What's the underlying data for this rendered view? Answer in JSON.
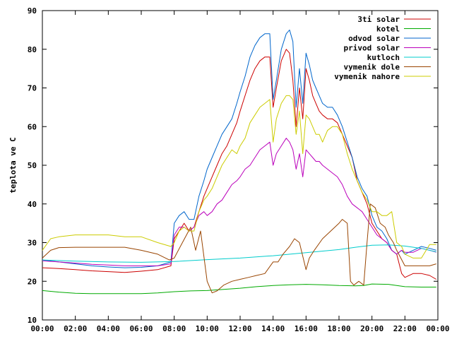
{
  "chart_data": {
    "type": "line",
    "title": "",
    "xlabel": "",
    "ylabel": "teplota ve C",
    "xlim": [
      0,
      24
    ],
    "ylim": [
      10,
      90
    ],
    "grid": false,
    "legend_position": "top-right",
    "x_ticks": [
      "00:00",
      "02:00",
      "04:00",
      "06:00",
      "08:00",
      "10:00",
      "12:00",
      "14:00",
      "16:00",
      "18:00",
      "20:00",
      "22:00",
      "00:00"
    ],
    "y_ticks": [
      "10",
      "20",
      "30",
      "40",
      "50",
      "60",
      "70",
      "80",
      "90"
    ],
    "series": [
      {
        "name": "3ti solar",
        "color": "#cc0000",
        "x": [
          0,
          1,
          2,
          3,
          4,
          5,
          6,
          7,
          7.8,
          8,
          8.3,
          8.6,
          8.9,
          9.2,
          9.5,
          9.8,
          10,
          10.3,
          10.6,
          10.9,
          11.2,
          11.5,
          11.8,
          12,
          12.3,
          12.6,
          12.9,
          13.2,
          13.5,
          13.8,
          14,
          14.2,
          14.5,
          14.8,
          15,
          15.2,
          15.4,
          15.6,
          15.8,
          16,
          16.2,
          16.4,
          16.6,
          16.8,
          17,
          17.3,
          17.6,
          17.9,
          18.2,
          18.5,
          18.8,
          19.1,
          19.4,
          19.7,
          20,
          20.3,
          20.6,
          20.9,
          21.2,
          21.5,
          21.8,
          22,
          22.5,
          23,
          23.5,
          23.9
        ],
        "y": [
          23.5,
          23.3,
          23.0,
          22.7,
          22.5,
          22.3,
          22.6,
          23.0,
          24.0,
          31,
          33,
          35,
          33,
          34,
          38,
          42,
          44,
          47,
          50,
          53,
          55,
          58,
          61,
          64,
          68,
          72,
          75,
          77,
          78,
          78,
          65,
          70,
          77,
          80,
          79,
          72,
          60,
          70,
          62,
          75,
          72,
          68,
          66,
          64,
          63,
          62,
          62,
          61,
          58,
          55,
          52,
          46,
          43,
          40,
          35,
          33,
          31,
          30,
          28,
          27,
          22,
          21,
          22,
          22,
          21.5,
          20.5
        ]
      },
      {
        "name": "kotel",
        "color": "#00aa00",
        "x": [
          0,
          1,
          2,
          3,
          4,
          5,
          6,
          7,
          8,
          9,
          10,
          11,
          12,
          13,
          14,
          15,
          16,
          17,
          18,
          19,
          19.5,
          20,
          21,
          22,
          23,
          23.9
        ],
        "y": [
          17.6,
          17.2,
          16.9,
          16.8,
          16.8,
          16.8,
          16.8,
          17.0,
          17.3,
          17.5,
          17.6,
          17.9,
          18.2,
          18.6,
          18.9,
          19.1,
          19.2,
          19.1,
          18.9,
          18.8,
          18.9,
          19.3,
          19.2,
          18.6,
          18.5,
          18.5
        ]
      },
      {
        "name": "odvod solar",
        "color": "#0066cc",
        "x": [
          0,
          1,
          2,
          3,
          4,
          5,
          6,
          7,
          7.8,
          8,
          8.3,
          8.6,
          8.9,
          9.2,
          9.5,
          9.8,
          10,
          10.3,
          10.6,
          10.9,
          11.2,
          11.5,
          11.8,
          12,
          12.3,
          12.6,
          12.9,
          13.2,
          13.5,
          13.8,
          14,
          14.2,
          14.5,
          14.8,
          15,
          15.2,
          15.4,
          15.6,
          15.8,
          16,
          16.2,
          16.4,
          16.6,
          16.8,
          17,
          17.3,
          17.6,
          17.9,
          18.2,
          18.5,
          18.8,
          19.1,
          19.4,
          19.7,
          20,
          20.3,
          20.6,
          20.9,
          21.2,
          21.5,
          21.8,
          22,
          22.5,
          23,
          23.5,
          23.9
        ],
        "y": [
          25.5,
          25.0,
          24.5,
          24.0,
          23.7,
          23.5,
          23.6,
          24.0,
          25.0,
          35,
          37,
          38,
          36,
          36,
          42,
          46,
          49,
          52,
          55,
          58,
          60,
          62,
          66,
          69,
          73,
          78,
          81,
          83,
          84,
          84,
          67,
          72,
          80,
          84,
          85,
          82,
          65,
          75,
          66,
          79,
          76,
          72,
          70,
          68,
          66,
          65,
          65,
          63,
          60,
          56,
          52,
          47,
          44,
          42,
          37,
          34,
          33,
          31,
          28,
          27,
          28,
          27,
          28,
          29,
          28.5,
          28
        ]
      },
      {
        "name": "privod solar",
        "color": "#bb00bb",
        "x": [
          0,
          1,
          2,
          3,
          4,
          5,
          6,
          7,
          7.8,
          8,
          8.3,
          8.6,
          8.9,
          9.2,
          9.5,
          9.8,
          10,
          10.3,
          10.6,
          10.9,
          11.2,
          11.5,
          11.8,
          12,
          12.3,
          12.6,
          12.9,
          13.2,
          13.5,
          13.8,
          14,
          14.2,
          14.5,
          14.8,
          15,
          15.2,
          15.4,
          15.6,
          15.8,
          16,
          16.2,
          16.4,
          16.6,
          16.8,
          17,
          17.3,
          17.6,
          17.9,
          18.2,
          18.5,
          18.8,
          19.1,
          19.4,
          19.7,
          20,
          20.3,
          20.6,
          20.9,
          21.2,
          21.5,
          21.8,
          22,
          22.5,
          23,
          23.5,
          23.9
        ],
        "y": [
          25.3,
          25.0,
          24.7,
          24.4,
          24.2,
          24.0,
          24.0,
          24.0,
          24.5,
          32,
          34,
          34,
          33,
          34,
          37,
          38,
          37,
          38,
          40,
          41,
          43,
          45,
          46,
          47,
          49,
          50,
          52,
          54,
          55,
          56,
          50,
          53,
          55,
          57,
          56,
          54,
          49,
          53,
          47,
          54,
          53,
          52,
          51,
          51,
          50,
          49,
          48,
          47,
          45,
          42,
          40,
          39,
          38,
          36,
          34,
          32,
          31,
          30,
          28,
          27,
          28,
          27.5,
          27.5,
          28.5,
          28,
          27.5
        ]
      },
      {
        "name": "kutloch",
        "color": "#00cccc",
        "x": [
          0,
          2,
          4,
          6,
          8,
          10,
          12,
          14,
          16,
          18,
          19,
          20,
          21,
          22,
          23,
          23.9
        ],
        "y": [
          25.5,
          25.2,
          25.0,
          24.9,
          25.1,
          25.6,
          26.0,
          26.6,
          27.4,
          28.2,
          28.8,
          29.3,
          29.4,
          29.1,
          28.5,
          27.6
        ]
      },
      {
        "name": "vymenik dole",
        "color": "#994400",
        "x": [
          0,
          0.5,
          1,
          2,
          3,
          4,
          5,
          6,
          7,
          7.7,
          8,
          8.5,
          9,
          9.3,
          9.6,
          10,
          10.3,
          10.6,
          11,
          11.5,
          12,
          12.5,
          13,
          13.5,
          14,
          14.3,
          14.6,
          15,
          15.3,
          15.6,
          16,
          16.2,
          16.5,
          17,
          17.5,
          18,
          18.2,
          18.5,
          18.7,
          18.9,
          19.2,
          19.5,
          19.7,
          19.9,
          20.2,
          20.5,
          20.8,
          21,
          21.3,
          21.5,
          22,
          22.5,
          23,
          23.5,
          23.9
        ],
        "y": [
          26,
          28,
          28.7,
          28.8,
          28.8,
          28.8,
          28.8,
          28,
          27,
          25.5,
          26,
          30,
          34,
          28,
          33,
          20,
          17,
          17.5,
          19,
          20,
          20.5,
          21,
          21.5,
          22,
          25,
          25,
          27,
          29,
          31,
          30,
          23,
          26,
          28,
          31,
          33,
          35,
          36,
          35,
          20,
          19,
          20,
          19,
          30,
          40,
          39,
          35,
          34,
          32,
          30,
          28,
          24,
          24,
          24,
          24,
          24.5
        ]
      },
      {
        "name": "vymenik nahore",
        "color": "#cccc00",
        "x": [
          0,
          0.5,
          1,
          2,
          3,
          4,
          5,
          6,
          7,
          7.8,
          8,
          8.3,
          8.6,
          8.9,
          9.2,
          9.5,
          9.8,
          10,
          10.3,
          10.6,
          10.9,
          11.2,
          11.5,
          11.8,
          12,
          12.3,
          12.6,
          12.9,
          13.2,
          13.5,
          13.8,
          14,
          14.2,
          14.5,
          14.8,
          15,
          15.2,
          15.4,
          15.6,
          15.8,
          16,
          16.2,
          16.4,
          16.6,
          16.8,
          17,
          17.3,
          17.6,
          17.9,
          18.2,
          18.5,
          18.8,
          19.1,
          19.4,
          19.7,
          20,
          20.3,
          20.6,
          20.9,
          21.2,
          21.5,
          21.8,
          22,
          22.5,
          23,
          23.5,
          23.9
        ],
        "y": [
          28,
          31,
          31.5,
          32,
          32,
          32,
          31.5,
          31.5,
          30,
          29,
          30,
          33,
          34,
          33,
          33,
          38,
          41,
          42,
          44,
          47,
          50,
          52,
          54,
          53,
          55,
          57,
          61,
          63,
          65,
          66,
          67,
          56,
          62,
          66,
          68,
          68,
          67,
          58,
          64,
          53,
          63,
          62,
          60,
          58,
          58,
          56,
          59,
          60,
          60,
          58,
          53,
          49,
          46,
          43,
          41,
          38,
          38,
          37,
          37,
          38,
          30,
          29,
          27,
          26,
          26,
          29.5,
          29.5
        ]
      }
    ]
  }
}
